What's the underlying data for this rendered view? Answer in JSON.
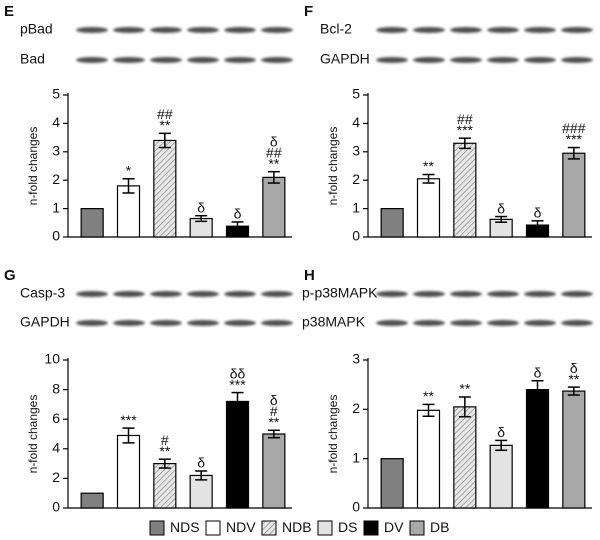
{
  "legend": {
    "categories": [
      "NDS",
      "NDV",
      "NDB",
      "DS",
      "DV",
      "DB"
    ],
    "colors": [
      "#808080",
      "#ffffff",
      "#d9d9d9",
      "#e3e3e3",
      "#000000",
      "#a8a8a8"
    ],
    "hatched": [
      2
    ]
  },
  "chart_data": [
    {
      "type": "bar",
      "panel": "E",
      "blots": [
        "pBad",
        "Bad"
      ],
      "ylabel": "n-fold changes",
      "values": [
        1,
        1.8,
        3.4,
        0.65,
        0.38,
        2.1
      ],
      "errors": [
        null,
        0.25,
        0.25,
        0.1,
        0.15,
        0.2
      ],
      "annotations": [
        [],
        [
          "*"
        ],
        [
          "##",
          "**"
        ],
        [
          "δ"
        ],
        [
          "δ"
        ],
        [
          "δ",
          "##",
          "**"
        ]
      ],
      "ylim": [
        0,
        5
      ],
      "yticks": [
        0,
        1,
        2,
        3,
        4,
        5
      ]
    },
    {
      "type": "bar",
      "panel": "F",
      "blots": [
        "Bcl-2",
        "GAPDH"
      ],
      "ylabel": "n-fold changes",
      "values": [
        1,
        2.05,
        3.3,
        0.62,
        0.42,
        2.95
      ],
      "errors": [
        null,
        0.15,
        0.18,
        0.1,
        0.15,
        0.2
      ],
      "annotations": [
        [],
        [
          "**"
        ],
        [
          "##",
          "***"
        ],
        [
          "δ"
        ],
        [
          "δ"
        ],
        [
          "###",
          "***"
        ]
      ],
      "ylim": [
        0,
        5
      ],
      "yticks": [
        0,
        1,
        2,
        3,
        4,
        5
      ]
    },
    {
      "type": "bar",
      "panel": "G",
      "blots": [
        "Casp-3",
        "GAPDH"
      ],
      "ylabel": "n-fold changes",
      "values": [
        1,
        4.9,
        3.0,
        2.2,
        7.2,
        5.0
      ],
      "errors": [
        null,
        0.5,
        0.3,
        0.3,
        0.6,
        0.25
      ],
      "annotations": [
        [],
        [
          "***"
        ],
        [
          "#",
          "**"
        ],
        [
          "δ"
        ],
        [
          "δδ",
          "***"
        ],
        [
          "δ",
          "#",
          "**"
        ]
      ],
      "ylim": [
        0,
        10
      ],
      "yticks": [
        0,
        2,
        4,
        6,
        8,
        10
      ]
    },
    {
      "type": "bar",
      "panel": "H",
      "blots": [
        "p-p38MAPK",
        "p38MAPK"
      ],
      "ylabel": "n-fold changes",
      "values": [
        1,
        1.98,
        2.05,
        1.27,
        2.4,
        2.37
      ],
      "errors": [
        null,
        0.12,
        0.2,
        0.1,
        0.18,
        0.08
      ],
      "annotations": [
        [],
        [
          "**"
        ],
        [
          "**"
        ],
        [
          "δ"
        ],
        [
          "δ"
        ],
        [
          "δ",
          "**"
        ]
      ],
      "ylim": [
        0,
        3
      ],
      "yticks": [
        0,
        1,
        2,
        3
      ]
    }
  ]
}
